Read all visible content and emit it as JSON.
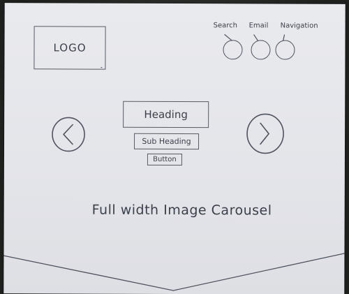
{
  "header": {
    "logo_text": "LOGO",
    "actions": {
      "search_label": "Search",
      "email_label": "Email",
      "navigation_label": "Navigation"
    }
  },
  "hero": {
    "heading": "Heading",
    "subheading": "Sub Heading",
    "button_label": "Button",
    "carousel_caption": "Full width Image Carousel"
  },
  "icons": {
    "prev": "chevron-left-icon",
    "next": "chevron-right-icon"
  }
}
